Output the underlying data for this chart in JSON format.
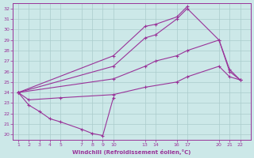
{
  "xlabel": "Windchill (Refroidissement éolien,°C)",
  "ylabel": "",
  "bg_color": "#cce8e8",
  "grid_color": "#aacccc",
  "line_color": "#993399",
  "xticks": [
    1,
    2,
    3,
    4,
    5,
    7,
    8,
    9,
    10,
    13,
    14,
    16,
    17,
    20,
    21,
    22
  ],
  "yticks": [
    20,
    21,
    22,
    23,
    24,
    25,
    26,
    27,
    28,
    29,
    30,
    31,
    32
  ],
  "ylim": [
    19.5,
    32.5
  ],
  "xlim": [
    0.5,
    23.0
  ],
  "lines": [
    {
      "x": [
        1,
        10,
        13,
        14,
        16,
        17
      ],
      "y": [
        24,
        27.5,
        30.3,
        30.5,
        31.2,
        32.2
      ]
    },
    {
      "x": [
        1,
        10,
        13,
        14,
        16,
        17,
        20,
        21,
        22
      ],
      "y": [
        24,
        26.5,
        29.2,
        29.5,
        31.0,
        32.0,
        29.0,
        26.2,
        25.2
      ]
    },
    {
      "x": [
        1,
        10,
        13,
        14,
        16,
        17,
        20,
        21,
        22
      ],
      "y": [
        24,
        25.3,
        26.5,
        27.0,
        27.5,
        28.0,
        29.0,
        26.0,
        25.2
      ]
    },
    {
      "x": [
        1,
        2,
        5,
        10,
        13,
        16,
        17,
        20,
        21,
        22
      ],
      "y": [
        24,
        23.3,
        23.5,
        23.8,
        24.5,
        25.0,
        25.5,
        26.5,
        25.5,
        25.2
      ]
    },
    {
      "x": [
        1,
        2,
        3,
        4,
        5,
        7,
        8,
        9,
        10
      ],
      "y": [
        24,
        22.8,
        22.2,
        21.5,
        21.2,
        20.5,
        20.1,
        19.9,
        23.5
      ]
    }
  ]
}
